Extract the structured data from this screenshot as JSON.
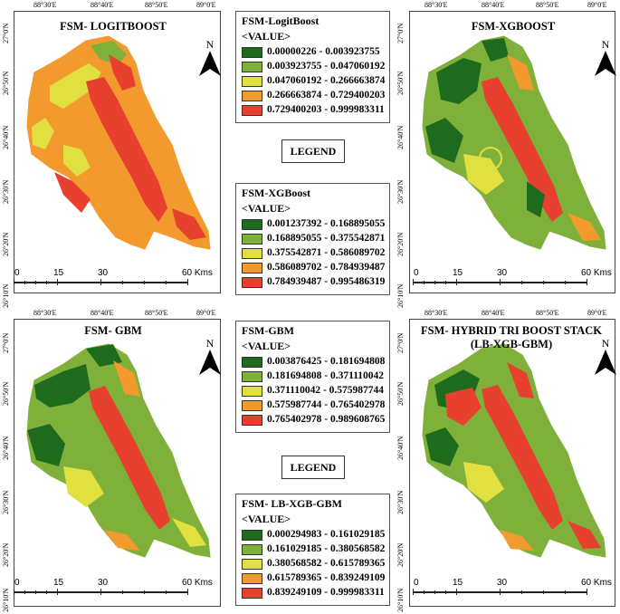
{
  "colors": {
    "c1": "#1e6b1e",
    "c2": "#7fb13a",
    "c3": "#e0e040",
    "c4": "#f29a2e",
    "c5": "#e8402e"
  },
  "panels": [
    {
      "id": "logitboost",
      "title": "FSM- LOGITBOOST",
      "title2": "",
      "top_coords": [
        "88°30'E",
        "88°40'E",
        "88°50'E",
        "89°0'E"
      ],
      "side_coords": [
        "27°0'N",
        "26°50'N",
        "26°40'N",
        "26°30'N",
        "26°20'N",
        "26°10'N"
      ],
      "north": "N",
      "scale": [
        "0",
        "15",
        "30",
        "60 Kms"
      ],
      "dominant": "orange-red"
    },
    {
      "id": "xgboost",
      "title": "FSM-XGBOOST",
      "title2": "",
      "top_coords": [
        "88°30'E",
        "88°40'E",
        "88°50'E",
        "89°0'E"
      ],
      "side_coords": [
        "27°0'N",
        "26°50'N",
        "26°40'N",
        "26°30'N",
        "26°20'N",
        "26°10'N"
      ],
      "north": "N",
      "scale": [
        "0",
        "15",
        "30",
        "60 Kms"
      ],
      "dominant": "green-red"
    },
    {
      "id": "gbm",
      "title": "FSM- GBM",
      "title2": "",
      "top_coords": [
        "88°30'E",
        "88°40'E",
        "88°50'E",
        "89°0'E"
      ],
      "side_coords": [
        "27°0'N",
        "26°50'N",
        "26°40'N",
        "26°30'N",
        "26°20'N",
        "26°10'N"
      ],
      "north": "N",
      "scale": [
        "0",
        "15",
        "30",
        "60 Kms"
      ],
      "dominant": "green-yellow"
    },
    {
      "id": "hybrid",
      "title": "FSM- HYBRID TRI BOOST STACK",
      "title2": "(LB-XGB-GBM)",
      "top_coords": [
        "88°30'E",
        "88°40'E",
        "88°50'E",
        "89°0'E"
      ],
      "side_coords": [
        "27°0'N",
        "26°50'N",
        "26°40'N",
        "26°30'N",
        "26°20'N",
        "26°10'N"
      ],
      "north": "N",
      "scale": [
        "0",
        "15",
        "30",
        "60 Kms"
      ],
      "dominant": "mixed"
    }
  ],
  "legends": [
    {
      "title": "FSM-LogitBoost",
      "value_label": "<VALUE>",
      "classes": [
        "0.00000226 - 0.003923755",
        "0.003923755 - 0.047060192",
        "0.047060192 - 0.266663874",
        "0.266663874 - 0.729400203",
        "0.729400203 - 0.999983311"
      ]
    },
    {
      "title": "FSM-XGBoost",
      "value_label": "<VALUE>",
      "classes": [
        "0.001237392 - 0.168895055",
        "0.168895055 - 0.375542871",
        "0.375542871 - 0.586089702",
        "0.586089702 - 0.784939487",
        "0.784939487 - 0.995486319"
      ]
    },
    {
      "title": "FSM-GBM",
      "value_label": "<VALUE>",
      "classes": [
        "0.003876425 - 0.181694808",
        "0.181694808 - 0.371110042",
        "0.371110042 - 0.575987744",
        "0.575987744 - 0.765402978",
        "0.765402978 - 0.989608765"
      ]
    },
    {
      "title": "FSM- LB-XGB-GBM",
      "value_label": "<VALUE>",
      "classes": [
        "0.000294983 - 0.161029185",
        "0.161029185 - 0.380568582",
        "0.380568582 - 0.615789365",
        "0.615789365 - 0.839249109",
        "0.839249109 - 0.999983311"
      ]
    }
  ],
  "legend_headings": [
    "LEGEND",
    "LEGEND"
  ]
}
